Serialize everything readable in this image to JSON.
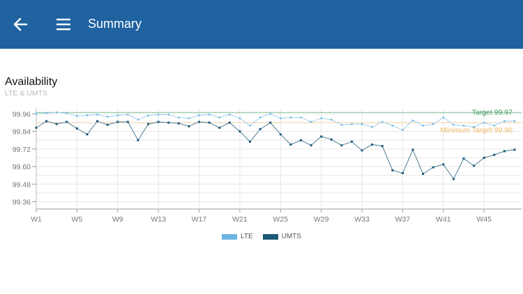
{
  "appbar": {
    "title": "Summary",
    "back_icon": "arrow-left-icon",
    "menu_icon": "hamburger-menu-icon",
    "color": "#1e62a0"
  },
  "chart_data": {
    "type": "line",
    "title": "Availability",
    "subtitle": "LTE & UMTS",
    "x": [
      "W1",
      "W2",
      "W3",
      "W4",
      "W5",
      "W6",
      "W7",
      "W8",
      "W9",
      "W10",
      "W11",
      "W12",
      "W13",
      "W14",
      "W15",
      "W16",
      "W17",
      "W18",
      "W19",
      "W20",
      "W21",
      "W22",
      "W23",
      "W24",
      "W25",
      "W26",
      "W27",
      "W28",
      "W29",
      "W30",
      "W31",
      "W32",
      "W33",
      "W34",
      "W35",
      "W36",
      "W37",
      "W38",
      "W39",
      "W40",
      "W41",
      "W42",
      "W43",
      "W44",
      "W45",
      "W46",
      "W47",
      "W48"
    ],
    "x_tick_labels": [
      "W1",
      "W5",
      "W9",
      "W13",
      "W17",
      "W21",
      "W25",
      "W29",
      "W33",
      "W37",
      "W41",
      "W45"
    ],
    "y_tick_labels": [
      "99.96",
      "99.84",
      "99.72",
      "99.60",
      "99.48",
      "99.36"
    ],
    "ylim": [
      99.31,
      100.0
    ],
    "grid": true,
    "legend_position": "bottom",
    "series": [
      {
        "name": "LTE",
        "color": "#6cb4e4",
        "values": [
          99.96,
          99.965,
          99.97,
          99.965,
          99.945,
          99.95,
          99.955,
          99.94,
          99.95,
          99.955,
          99.92,
          99.948,
          99.955,
          99.955,
          99.935,
          99.93,
          99.95,
          99.955,
          99.935,
          99.955,
          99.93,
          99.88,
          99.935,
          99.96,
          99.93,
          99.935,
          99.935,
          99.905,
          99.93,
          99.92,
          99.885,
          99.89,
          99.89,
          99.87,
          99.905,
          99.88,
          99.85,
          99.915,
          99.88,
          99.89,
          99.935,
          99.885,
          99.88,
          99.87,
          99.9,
          99.88,
          99.91,
          99.91
        ]
      },
      {
        "name": "UMTS",
        "color": "#1d5a7a",
        "values": [
          99.865,
          99.91,
          99.89,
          99.905,
          99.86,
          99.82,
          99.91,
          99.885,
          99.905,
          99.905,
          99.78,
          99.89,
          99.905,
          99.9,
          99.895,
          99.875,
          99.905,
          99.9,
          99.865,
          99.9,
          99.84,
          99.77,
          99.855,
          99.9,
          99.82,
          99.75,
          99.78,
          99.745,
          99.805,
          99.785,
          99.745,
          99.77,
          99.71,
          99.75,
          99.74,
          99.575,
          99.555,
          99.715,
          99.55,
          99.595,
          99.615,
          99.515,
          99.655,
          99.605,
          99.66,
          99.68,
          99.705,
          99.715
        ]
      }
    ],
    "annotations": [
      {
        "label": "Target 99.97",
        "value": 99.97,
        "color": "#3a9a5c"
      },
      {
        "label": "Minimum Target 99.90",
        "value": 99.9,
        "color": "#f0b866"
      }
    ]
  }
}
